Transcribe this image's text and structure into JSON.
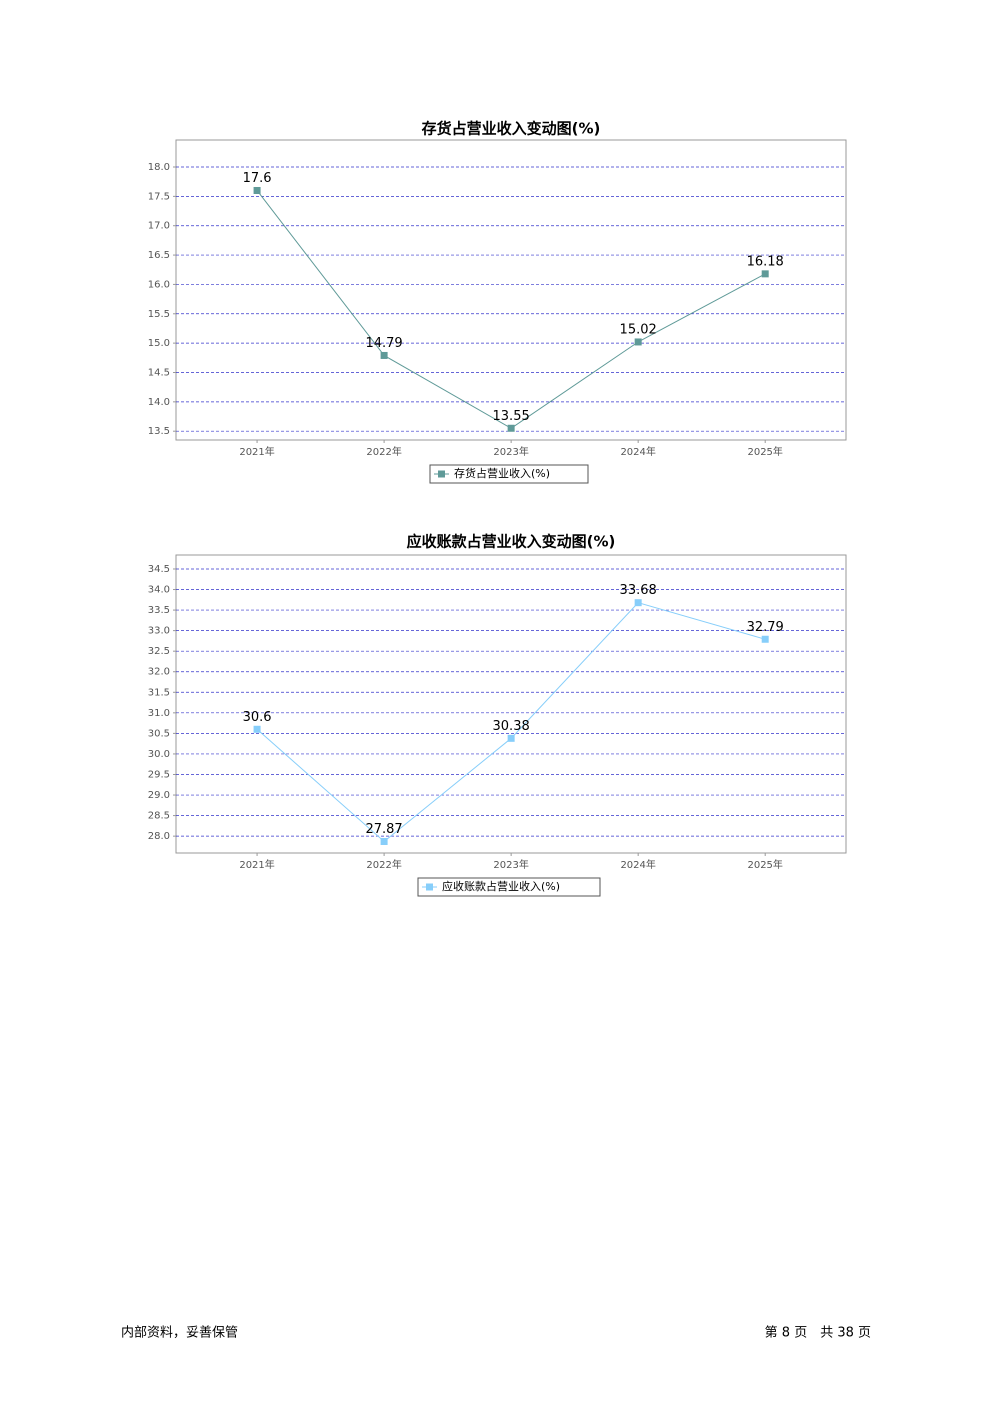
{
  "chart_data": [
    {
      "type": "line",
      "title": "存货占营业收入变动图(%)",
      "categories": [
        "2021年",
        "2022年",
        "2023年",
        "2024年",
        "2025年"
      ],
      "series": [
        {
          "name": "存货占营业收入(%)",
          "color": "#5f9a98",
          "values": [
            17.6,
            14.79,
            13.55,
            15.02,
            16.18
          ]
        }
      ],
      "ylim": [
        13.35,
        18.46
      ],
      "yticks": [
        13.5,
        {
          "value": 14,
          "label": "14.0"
        },
        14.5,
        {
          "value": 15,
          "label": "15.0"
        },
        15.5,
        {
          "value": 16,
          "label": "16.0"
        },
        16.5,
        {
          "value": 17,
          "label": "17.0"
        },
        17.5,
        {
          "value": 18,
          "label": "18.0"
        }
      ],
      "grid": true
    },
    {
      "type": "line",
      "title": "应收账款占营业收入变动图(%)",
      "categories": [
        "2021年",
        "2022年",
        "2023年",
        "2024年",
        "2025年"
      ],
      "series": [
        {
          "name": "应收账款占营业收入(%)",
          "color": "#87cefa",
          "values": [
            30.6,
            27.87,
            30.38,
            33.68,
            32.79
          ]
        }
      ],
      "ylim": [
        27.59,
        34.84
      ],
      "yticks": [
        {
          "value": 28,
          "label": "28.0"
        },
        28.5,
        {
          "value": 29,
          "label": "29.0"
        },
        29.5,
        {
          "value": 30,
          "label": "30.0"
        },
        30.5,
        {
          "value": 31,
          "label": "31.0"
        },
        31.5,
        {
          "value": 32,
          "label": "32.0"
        },
        32.5,
        {
          "value": 33,
          "label": "33.0"
        },
        33.5,
        {
          "value": 34,
          "label": "34.0"
        },
        34.5
      ],
      "grid": true
    }
  ],
  "footer": {
    "left": "内部资料，妥善保管",
    "right": "第 8 页　共 38 页"
  }
}
